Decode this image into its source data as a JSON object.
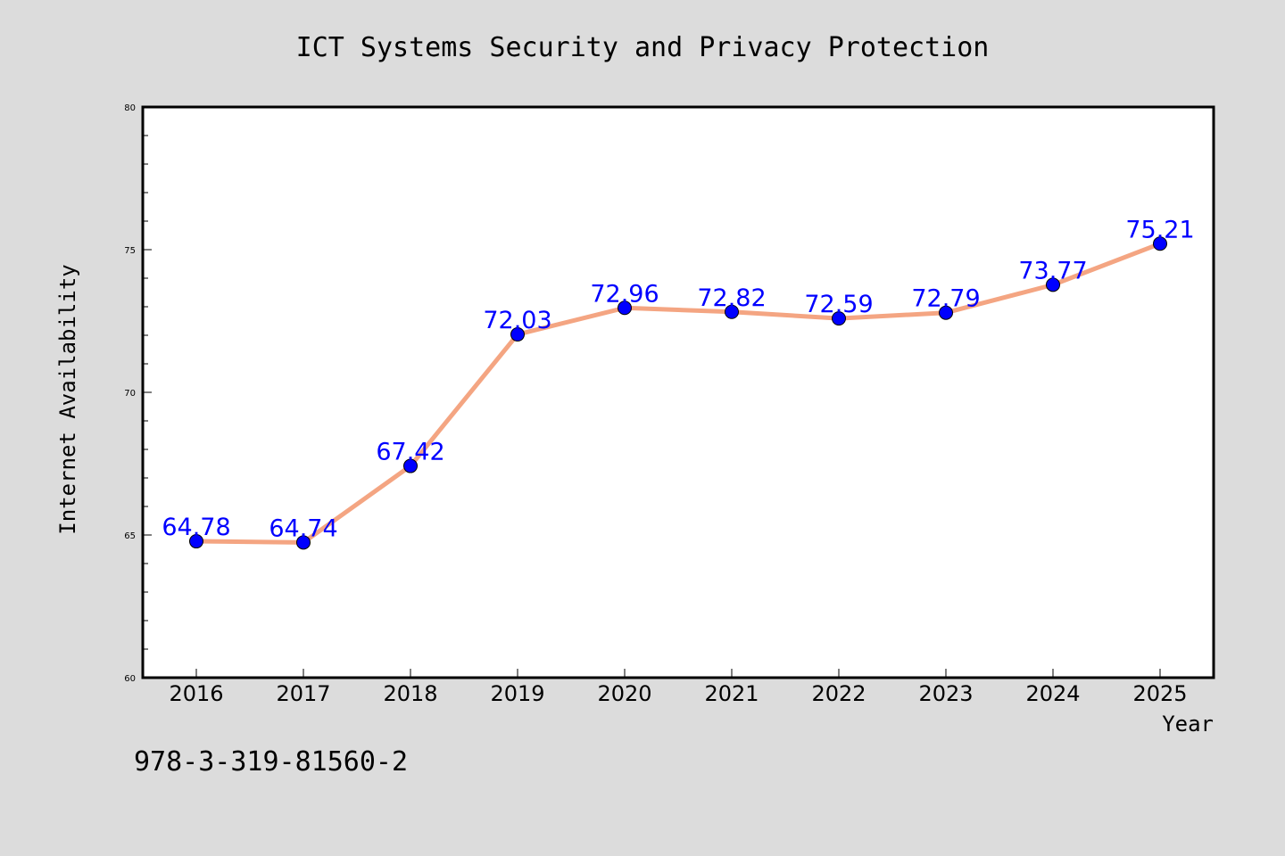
{
  "chart_data": {
    "type": "line",
    "title": "ICT Systems Security and Privacy Protection",
    "xlabel": "Year",
    "ylabel": "Internet Availability",
    "categories": [
      "2016",
      "2017",
      "2018",
      "2019",
      "2020",
      "2021",
      "2022",
      "2023",
      "2024",
      "2025"
    ],
    "series": [
      {
        "values": [
          64.78,
          64.74,
          67.42,
          72.03,
          72.96,
          72.82,
          72.59,
          72.79,
          73.77,
          75.21
        ],
        "labels": [
          "64.78",
          "64.74",
          "67.42",
          "72.03",
          "72.96",
          "72.82",
          "72.59",
          "72.79",
          "73.77",
          "75.21"
        ],
        "line_color": "#f4a582",
        "marker_color": "#0000ff"
      }
    ],
    "ylim": [
      60,
      80
    ],
    "yticks": [
      "60",
      "65",
      "70",
      "75",
      "80"
    ],
    "grid": false,
    "legend": "none"
  },
  "footer": {
    "isbn": "978-3-319-81560-2"
  },
  "colors": {
    "background": "#dcdcdc",
    "plot_background": "#ffffff",
    "label_color": "#0000ff"
  }
}
